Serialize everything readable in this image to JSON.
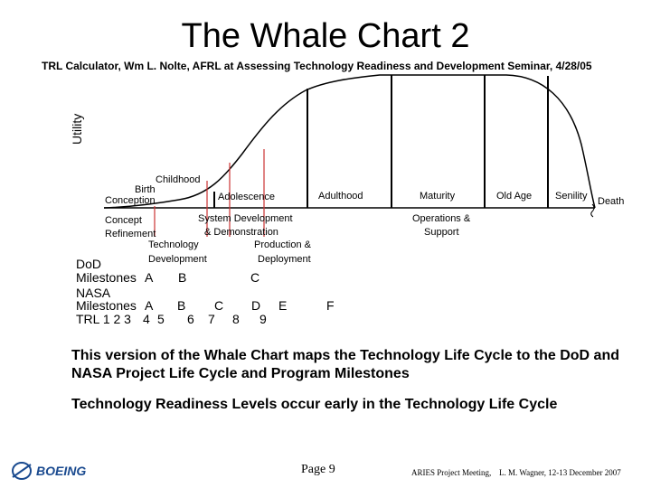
{
  "title": "The Whale Chart 2",
  "subtitle": "TRL Calculator, Wm L. Nolte, AFRL at Assessing Technology Readiness and Development Seminar, 4/28/05",
  "y_axis_label": "Utility",
  "phases": {
    "birth": "Birth",
    "conception": "Conception",
    "childhood": "Childhood",
    "adolescence": "Adolescence",
    "adulthood": "Adulthood",
    "maturity": "Maturity",
    "old_age": "Old Age",
    "senility": "Senility",
    "death": "Death"
  },
  "dod_phases": {
    "concept": "Concept",
    "refinement": "Refinement",
    "tech_dev_1": "Technology",
    "tech_dev_2": "Development",
    "sys_dev_1": "System Development",
    "sys_dev_2": "& Demonstration",
    "prod_dep_1": "Production &",
    "prod_dep_2": "Deployment",
    "ops_1": "Operations &",
    "ops_2": "Support"
  },
  "milestones": {
    "dod_label_1": "DoD",
    "dod_label_2": "Milestones",
    "dod": [
      "A",
      "B",
      "C"
    ],
    "nasa_label_1": "NASA",
    "nasa_label_2": "Milestones",
    "nasa": [
      "A",
      "B",
      "C",
      "D",
      "E",
      "F"
    ],
    "trl_label": "TRL 1 2 3",
    "trl": [
      "4",
      "5",
      "6",
      "7",
      "8",
      "9"
    ]
  },
  "body": {
    "para1": "This version of the Whale Chart maps the Technology Life Cycle to the DoD and NASA Project Life Cycle and Program Milestones",
    "para2": "Technology Readiness Levels occur early in the Technology Life Cycle"
  },
  "footer": {
    "logo_text": "BOEING",
    "page": "Page 9",
    "meeting": "ARIES Project Meeting,",
    "author": "L. M. Wagner, 12-13 December 2007"
  },
  "colors": {
    "trl_line": "#cc3333",
    "logo": "#1a4a8f"
  }
}
